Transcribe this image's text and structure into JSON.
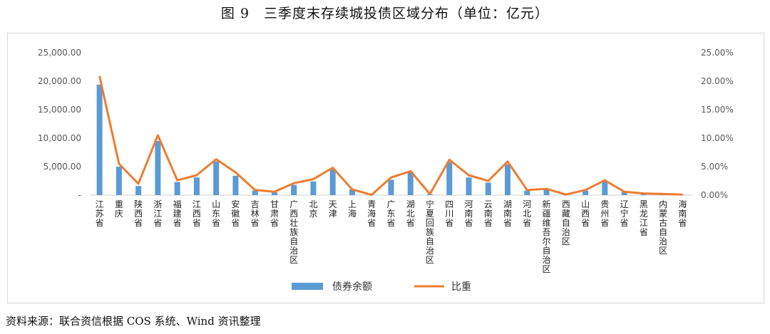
{
  "figure": {
    "title": "图 9　三季度末存续城投债区域分布（单位：亿元）",
    "source": "资料来源：联合资信根据 COS 系统、Wind 资讯整理"
  },
  "chart_data": {
    "type": "bar",
    "categories": [
      "江苏省",
      "重庆",
      "陕西省",
      "浙江省",
      "福建省",
      "江西省",
      "山东省",
      "安徽省",
      "吉林省",
      "甘肃省",
      "广西壮族自治区",
      "北京",
      "天津",
      "上海",
      "青海省",
      "广东省",
      "湖北省",
      "宁夏回族自治区",
      "四川省",
      "河南省",
      "云南省",
      "湖南省",
      "河北省",
      "新疆维吾尔自治区",
      "西藏自治区",
      "山西省",
      "贵州省",
      "辽宁省",
      "黑龙江省",
      "内蒙古自治区",
      "海南省"
    ],
    "series": [
      {
        "name": "债券余额",
        "type": "bar",
        "axis": "left",
        "color": "#5b9bd5",
        "values": [
          19400,
          5000,
          1600,
          9500,
          2300,
          3100,
          5900,
          3400,
          800,
          500,
          1800,
          2400,
          4500,
          1000,
          50,
          2700,
          4100,
          200,
          5800,
          3100,
          2200,
          5400,
          800,
          1000,
          100,
          800,
          2400,
          600,
          300,
          150,
          80
        ]
      },
      {
        "name": "比重",
        "type": "line",
        "axis": "right",
        "color": "#ed7d31",
        "values": [
          20.9,
          5.5,
          2.0,
          10.5,
          2.6,
          3.5,
          6.3,
          4.0,
          0.9,
          0.6,
          2.1,
          2.8,
          4.8,
          1.0,
          0.05,
          3.1,
          4.2,
          0.2,
          6.2,
          3.5,
          2.5,
          5.9,
          0.9,
          1.1,
          0.1,
          0.9,
          2.6,
          0.6,
          0.3,
          0.2,
          0.1
        ]
      }
    ],
    "y_left": {
      "min": 0,
      "max": 25000,
      "ticks": [
        "-",
        "5,000.00",
        "10,000.00",
        "15,000.00",
        "20,000.00",
        "25,000.00"
      ]
    },
    "y_right": {
      "min": 0,
      "max": 25,
      "ticks": [
        "0.00%",
        "5.00%",
        "10.00%",
        "15.00%",
        "20.00%",
        "25.00%"
      ]
    },
    "grid": false,
    "legend_position": "bottom"
  }
}
